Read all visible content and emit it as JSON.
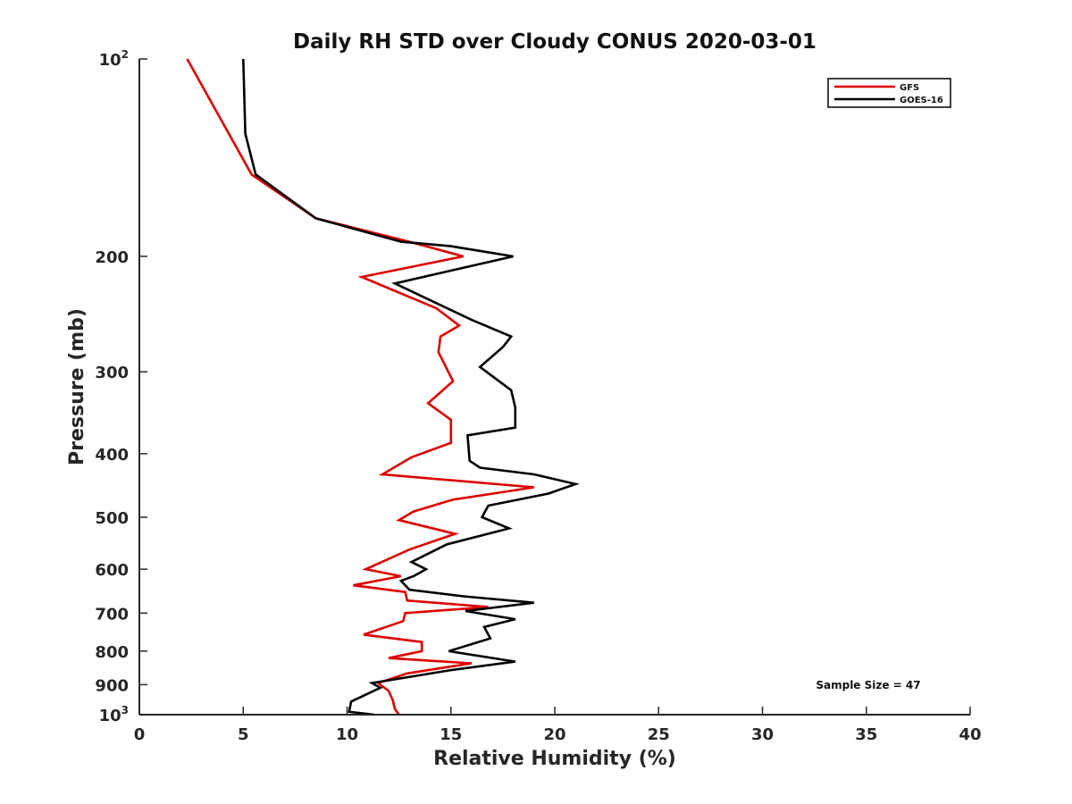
{
  "chart_data": {
    "type": "line",
    "title": "Daily RH STD over Cloudy CONUS 2020-03-01",
    "xlabel": "Relative Humidity (%)",
    "ylabel": "Pressure (mb)",
    "xlim": [
      0,
      40
    ],
    "ylim": [
      100,
      1000
    ],
    "yscale": "log",
    "yaxis_reversed": true,
    "grid": false,
    "legend_position": "top-right",
    "x_ticks": [
      "0",
      "5",
      "10",
      "15",
      "20",
      "25",
      "30",
      "35",
      "40"
    ],
    "y_ticks": [
      {
        "value": 100,
        "base": "10",
        "exp": "2"
      },
      {
        "value": 200,
        "label": "200"
      },
      {
        "value": 300,
        "label": "300"
      },
      {
        "value": 400,
        "label": "400"
      },
      {
        "value": 500,
        "label": "500"
      },
      {
        "value": 600,
        "label": "600"
      },
      {
        "value": 700,
        "label": "700"
      },
      {
        "value": 800,
        "label": "800"
      },
      {
        "value": 900,
        "label": "900"
      },
      {
        "value": 1000,
        "base": "10",
        "exp": "3"
      }
    ],
    "annotation": "Sample Size = 47",
    "series": [
      {
        "name": "GFS",
        "color": "#dd0000",
        "points": [
          [
            2.3,
            100
          ],
          [
            5.4,
            150
          ],
          [
            8.5,
            175
          ],
          [
            13.0,
            190
          ],
          [
            15.6,
            200
          ],
          [
            10.7,
            215
          ],
          [
            14.3,
            240
          ],
          [
            15.4,
            255
          ],
          [
            14.5,
            265
          ],
          [
            14.4,
            280
          ],
          [
            15.1,
            310
          ],
          [
            13.9,
            335
          ],
          [
            15.0,
            355
          ],
          [
            15.0,
            385
          ],
          [
            13.1,
            405
          ],
          [
            11.7,
            430
          ],
          [
            19.0,
            450
          ],
          [
            15.1,
            470
          ],
          [
            13.2,
            490
          ],
          [
            12.5,
            505
          ],
          [
            15.2,
            530
          ],
          [
            13.0,
            560
          ],
          [
            10.9,
            600
          ],
          [
            12.6,
            615
          ],
          [
            10.3,
            635
          ],
          [
            12.8,
            650
          ],
          [
            12.9,
            670
          ],
          [
            16.8,
            685
          ],
          [
            12.8,
            700
          ],
          [
            12.7,
            720
          ],
          [
            10.8,
            755
          ],
          [
            13.6,
            775
          ],
          [
            13.6,
            800
          ],
          [
            12.0,
            820
          ],
          [
            16.0,
            835
          ],
          [
            12.9,
            865
          ],
          [
            11.5,
            895
          ],
          [
            12.0,
            920
          ],
          [
            12.2,
            950
          ],
          [
            12.3,
            980
          ],
          [
            12.5,
            1000
          ]
        ]
      },
      {
        "name": "GOES-16",
        "color": "#000000",
        "points": [
          [
            5.0,
            100
          ],
          [
            5.1,
            130
          ],
          [
            5.6,
            150
          ],
          [
            8.5,
            175
          ],
          [
            12.6,
            190
          ],
          [
            15.0,
            193
          ],
          [
            18.0,
            200
          ],
          [
            12.3,
            220
          ],
          [
            16.0,
            250
          ],
          [
            17.9,
            265
          ],
          [
            17.5,
            275
          ],
          [
            16.4,
            295
          ],
          [
            17.9,
            320
          ],
          [
            18.1,
            340
          ],
          [
            18.1,
            365
          ],
          [
            15.8,
            375
          ],
          [
            15.9,
            410
          ],
          [
            16.4,
            420
          ],
          [
            19.0,
            430
          ],
          [
            21.0,
            445
          ],
          [
            19.7,
            460
          ],
          [
            16.8,
            480
          ],
          [
            16.5,
            500
          ],
          [
            17.8,
            520
          ],
          [
            14.8,
            550
          ],
          [
            13.1,
            585
          ],
          [
            13.8,
            600
          ],
          [
            13.2,
            615
          ],
          [
            12.6,
            625
          ],
          [
            13.0,
            645
          ],
          [
            15.6,
            660
          ],
          [
            19.0,
            675
          ],
          [
            15.7,
            695
          ],
          [
            18.1,
            715
          ],
          [
            16.6,
            735
          ],
          [
            16.9,
            765
          ],
          [
            14.9,
            800
          ],
          [
            18.1,
            830
          ],
          [
            15.0,
            855
          ],
          [
            11.2,
            895
          ],
          [
            11.6,
            910
          ],
          [
            10.2,
            955
          ],
          [
            10.1,
            990
          ],
          [
            11.3,
            1000
          ]
        ]
      }
    ]
  }
}
